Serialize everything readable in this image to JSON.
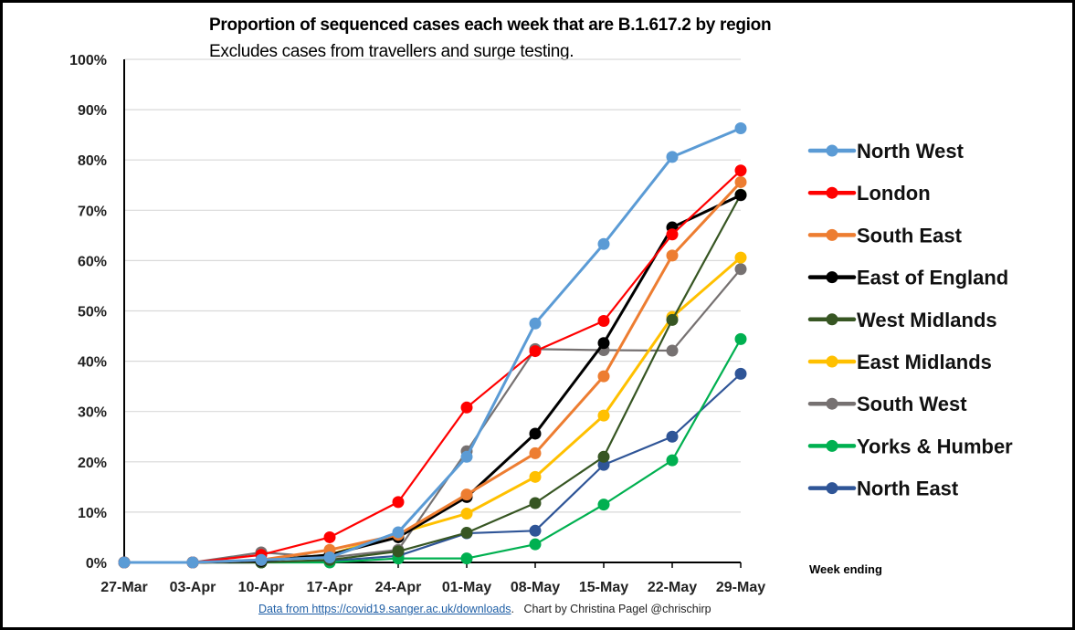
{
  "chart_data": {
    "type": "line",
    "title": "Proportion of sequenced cases each week that are B.1.617.2  by region",
    "subtitle": "Excludes cases from travellers and surge testing.",
    "xlabel": "Week ending",
    "ylabel": "",
    "ylim": [
      0,
      100
    ],
    "y_ticks": [
      "0%",
      "10%",
      "20%",
      "30%",
      "40%",
      "50%",
      "60%",
      "70%",
      "80%",
      "90%",
      "100%"
    ],
    "y_tick_values": [
      0,
      10,
      20,
      30,
      40,
      50,
      60,
      70,
      80,
      90,
      100
    ],
    "grid": true,
    "legend_position": "right",
    "categories": [
      "27-Mar",
      "03-Apr",
      "10-Apr",
      "17-Apr",
      "24-Apr",
      "01-May",
      "08-May",
      "15-May",
      "22-May",
      "29-May"
    ],
    "series": [
      {
        "name": "North West",
        "color": "#5b9bd5",
        "values": [
          0,
          0,
          0.5,
          1.0,
          6.0,
          21.0,
          47.5,
          63.3,
          80.6,
          86.3
        ]
      },
      {
        "name": "London",
        "color": "#ff0000",
        "values": [
          0,
          0,
          1.5,
          5.0,
          12.0,
          30.8,
          42.0,
          48.0,
          65.2,
          77.9
        ]
      },
      {
        "name": "South East",
        "color": "#ed7d31",
        "values": [
          0,
          0,
          0.5,
          2.5,
          5.5,
          13.5,
          21.7,
          37.0,
          61.0,
          75.6
        ]
      },
      {
        "name": "East of England",
        "color": "#000000",
        "values": [
          0,
          0,
          0.3,
          1.5,
          5.0,
          13.0,
          25.6,
          43.6,
          66.6,
          73.0
        ]
      },
      {
        "name": "West Midlands",
        "color": "#375623",
        "values": [
          0,
          0,
          0,
          0.5,
          2.2,
          5.9,
          11.8,
          21.0,
          48.2,
          73.1
        ]
      },
      {
        "name": "East Midlands",
        "color": "#ffc000",
        "values": [
          0,
          0,
          0.3,
          1.5,
          5.8,
          9.7,
          17.0,
          29.2,
          48.8,
          60.6
        ]
      },
      {
        "name": "South West",
        "color": "#767171",
        "values": [
          0,
          0,
          2.0,
          1.0,
          2.5,
          22.1,
          42.4,
          42.2,
          42.1,
          58.3
        ]
      },
      {
        "name": "Yorks & Humber",
        "color": "#00b050",
        "values": [
          0,
          0,
          0,
          0,
          0.8,
          0.8,
          3.6,
          11.5,
          20.3,
          44.4
        ]
      },
      {
        "name": "North East",
        "color": "#2f5597",
        "values": [
          0,
          0,
          0,
          0.3,
          1.3,
          5.8,
          6.3,
          19.4,
          25.0,
          37.5
        ]
      }
    ]
  },
  "footer": {
    "source_link_text": "Data from https://covid19.sanger.ac.uk/downloads",
    "separator": ".",
    "credit": "Chart by Christina Pagel @chrischirp"
  }
}
